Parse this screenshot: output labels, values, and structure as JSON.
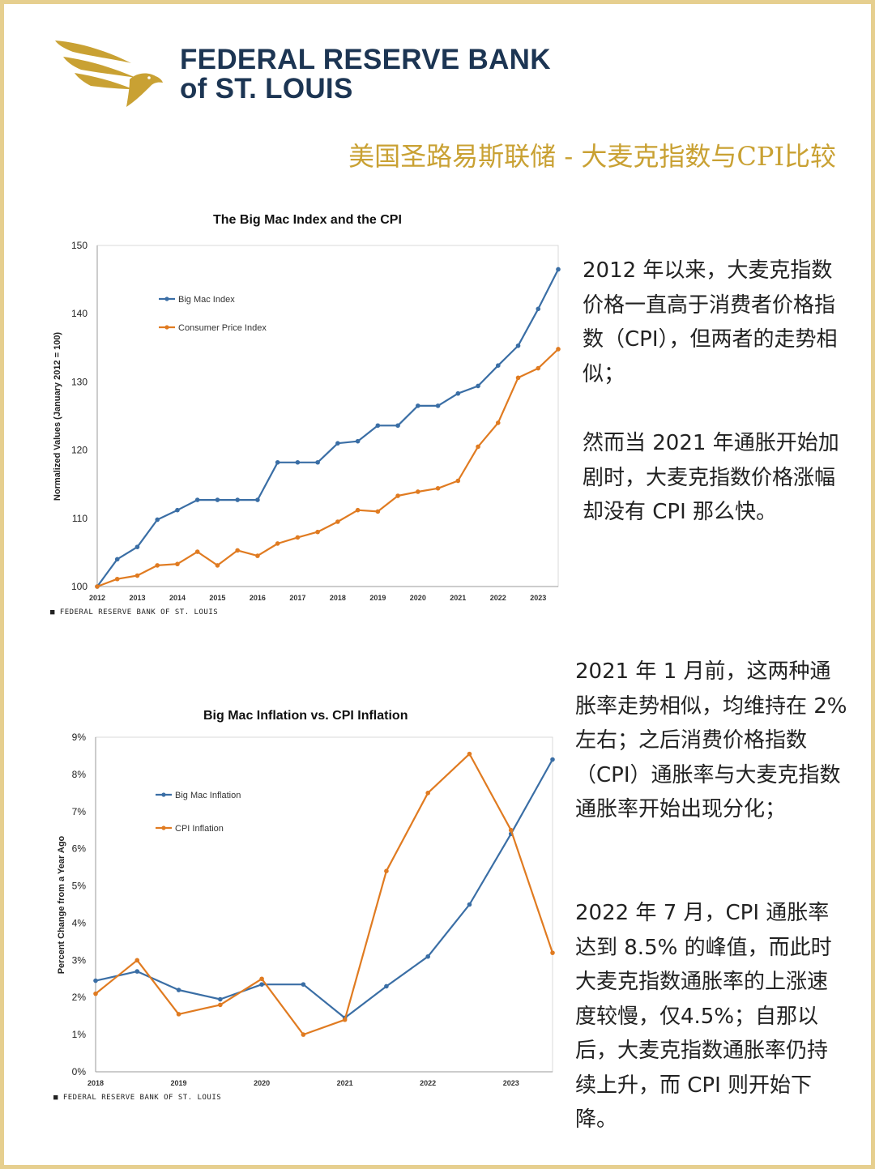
{
  "header": {
    "org_line1": "FEDERAL RESERVE BANK",
    "org_line2": "of ST. LOUIS",
    "headline": "美国圣路易斯联储 - 大麦克指数与CPI比较"
  },
  "colors": {
    "gold": "#c9a133",
    "navy": "#1c3553",
    "blue_series": "#3a6ea5",
    "orange_series": "#e07b21"
  },
  "chart_data": [
    {
      "type": "line",
      "title": "The Big Mac Index and the CPI",
      "ylabel": "Normalized Values (January 2012 = 100)",
      "xlabel": "",
      "ylim": [
        100,
        150
      ],
      "xlim": [
        2012,
        2023.5
      ],
      "yticks": [
        "100",
        "110",
        "120",
        "130",
        "140",
        "150"
      ],
      "xticks": [
        "2012",
        "2013",
        "2014",
        "2015",
        "2016",
        "2017",
        "2018",
        "2019",
        "2020",
        "2021",
        "2022",
        "2023"
      ],
      "legend_position": "top-left",
      "grid": false,
      "source": "FEDERAL RESERVE BANK OF ST. LOUIS",
      "series": [
        {
          "name": "Big Mac Index",
          "color": "#3a6ea5",
          "x": [
            2012,
            2012.5,
            2013,
            2013.5,
            2014,
            2014.5,
            2015,
            2015.5,
            2016,
            2016.5,
            2017,
            2017.5,
            2018,
            2018.5,
            2019,
            2019.5,
            2020,
            2020.5,
            2021,
            2021.5,
            2022,
            2022.5,
            2023,
            2023.5
          ],
          "values": [
            100,
            104,
            105.8,
            109.8,
            111.2,
            112.7,
            112.7,
            112.7,
            112.7,
            118.2,
            118.2,
            118.2,
            121,
            121.3,
            123.6,
            123.6,
            126.5,
            126.5,
            128.3,
            129.4,
            132.4,
            135.3,
            140.7,
            146.5
          ]
        },
        {
          "name": "Consumer Price Index",
          "color": "#e07b21",
          "x": [
            2012,
            2012.5,
            2013,
            2013.5,
            2014,
            2014.5,
            2015,
            2015.5,
            2016,
            2016.5,
            2017,
            2017.5,
            2018,
            2018.5,
            2019,
            2019.5,
            2020,
            2020.5,
            2021,
            2021.5,
            2022,
            2022.5,
            2023,
            2023.5
          ],
          "values": [
            100,
            101.1,
            101.6,
            103.1,
            103.3,
            105.1,
            103.1,
            105.3,
            104.5,
            106.3,
            107.2,
            108,
            109.5,
            111.2,
            111,
            113.3,
            113.9,
            114.4,
            115.5,
            120.5,
            124,
            130.6,
            132,
            134.8
          ]
        }
      ]
    },
    {
      "type": "line",
      "title": "Big Mac Inflation vs. CPI Inflation",
      "ylabel": "Percent Change from a Year Ago",
      "xlabel": "",
      "ylim": [
        0,
        9
      ],
      "xlim": [
        2018,
        2023.5
      ],
      "yticks": [
        "0%",
        "1%",
        "2%",
        "3%",
        "4%",
        "5%",
        "6%",
        "7%",
        "8%",
        "9%"
      ],
      "xticks": [
        "2018",
        "2019",
        "2020",
        "2021",
        "2022",
        "2023"
      ],
      "legend_position": "top-left",
      "grid": false,
      "source": "FEDERAL RESERVE BANK OF ST. LOUIS",
      "series": [
        {
          "name": "Big Mac Inflation",
          "color": "#3a6ea5",
          "x": [
            2018,
            2018.5,
            2019,
            2019.5,
            2020,
            2020.5,
            2021,
            2021.5,
            2022,
            2022.5,
            2023,
            2023.5
          ],
          "values": [
            2.45,
            2.7,
            2.2,
            1.95,
            2.35,
            2.35,
            1.45,
            2.3,
            3.1,
            4.5,
            6.4,
            8.4
          ]
        },
        {
          "name": "CPI Inflation",
          "color": "#e07b21",
          "x": [
            2018,
            2018.5,
            2019,
            2019.5,
            2020,
            2020.5,
            2021,
            2021.5,
            2022,
            2022.5,
            2023,
            2023.5
          ],
          "values": [
            2.1,
            3.0,
            1.55,
            1.8,
            2.5,
            1.0,
            1.4,
            5.4,
            7.5,
            8.55,
            6.5,
            3.2
          ]
        }
      ]
    }
  ],
  "text": {
    "p1": "2012 年以来，大麦克指数价格一直高于消费者价格指数（CPI），但两者的走势相似；",
    "p2": "然而当 2021 年通胀开始加剧时，大麦克指数价格涨幅却没有 CPI 那么快。",
    "p3": "2021 年 1 月前，这两种通胀率走势相似，均维持在 2% 左右；之后消费价格指数（CPI）通胀率与大麦克指数通胀率开始出现分化；",
    "p4": "2022 年 7 月，CPI 通胀率达到 8.5% 的峰值，而此时大麦克指数通胀率的上涨速度较慢，仅4.5%；自那以后，大麦克指数通胀率仍持续上升，而 CPI 则开始下降。"
  }
}
